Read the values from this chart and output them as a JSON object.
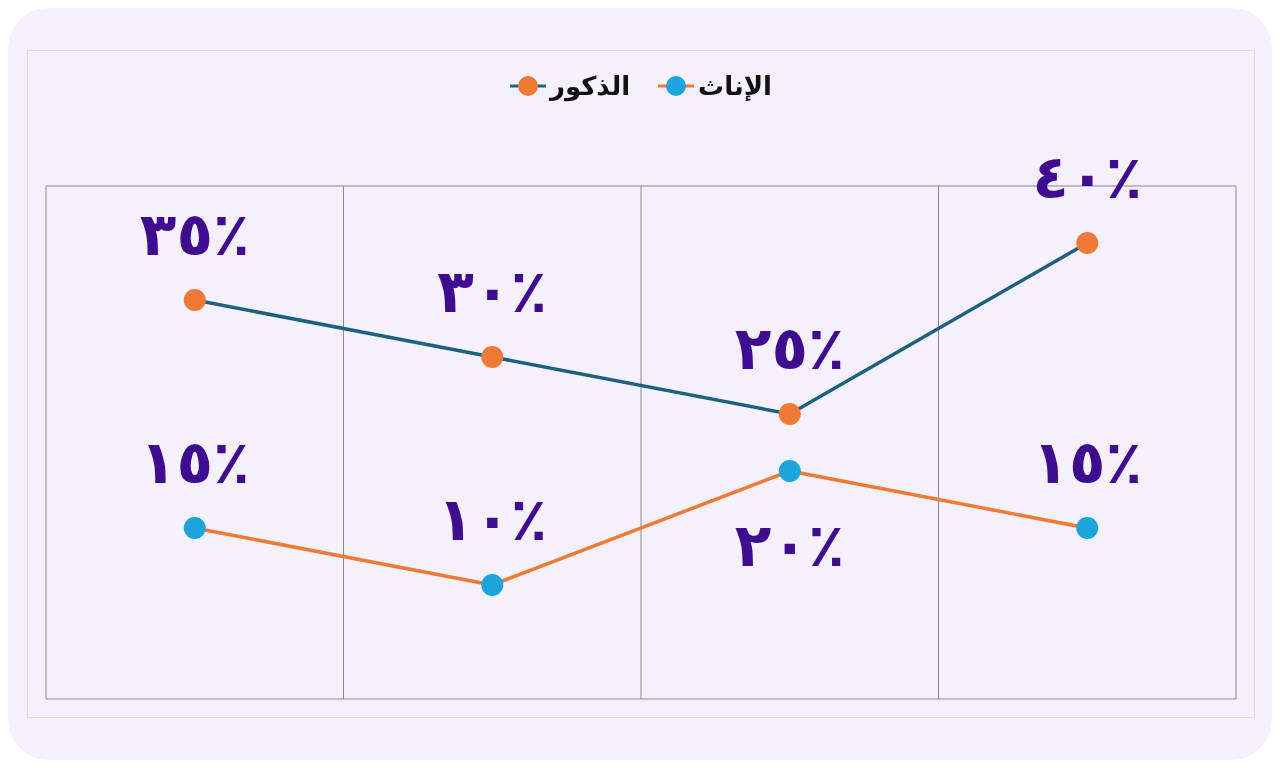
{
  "chart_data": {
    "type": "line",
    "categories": [
      null,
      null,
      null,
      null
    ],
    "series": [
      {
        "name": "الذكور",
        "color": "#20607f",
        "colors": [
          "#ee7a35",
          "#ee7a35",
          "#ee7a35",
          "#ee7a35"
        ],
        "values": [
          35,
          30,
          25,
          40
        ],
        "value_labels": [
          "٣٥٪",
          "٣٠٪",
          "٢٥٪",
          "٤٠٪"
        ]
      },
      {
        "name": "الإناث",
        "color": "#ee7a35",
        "colors": [
          "#1ca4dc",
          "#1ca4dc",
          "#1ca4dc",
          "#1ca4dc"
        ],
        "values": [
          15,
          10,
          20,
          15
        ],
        "value_labels": [
          "١٥٪",
          "١٠٪",
          "٢٠٪",
          "١٥٪"
        ]
      }
    ],
    "ylim": [
      0,
      45
    ],
    "tick_labels": false,
    "grid": true,
    "legend": "top",
    "marker": "circle",
    "line_style": "solid"
  }
}
